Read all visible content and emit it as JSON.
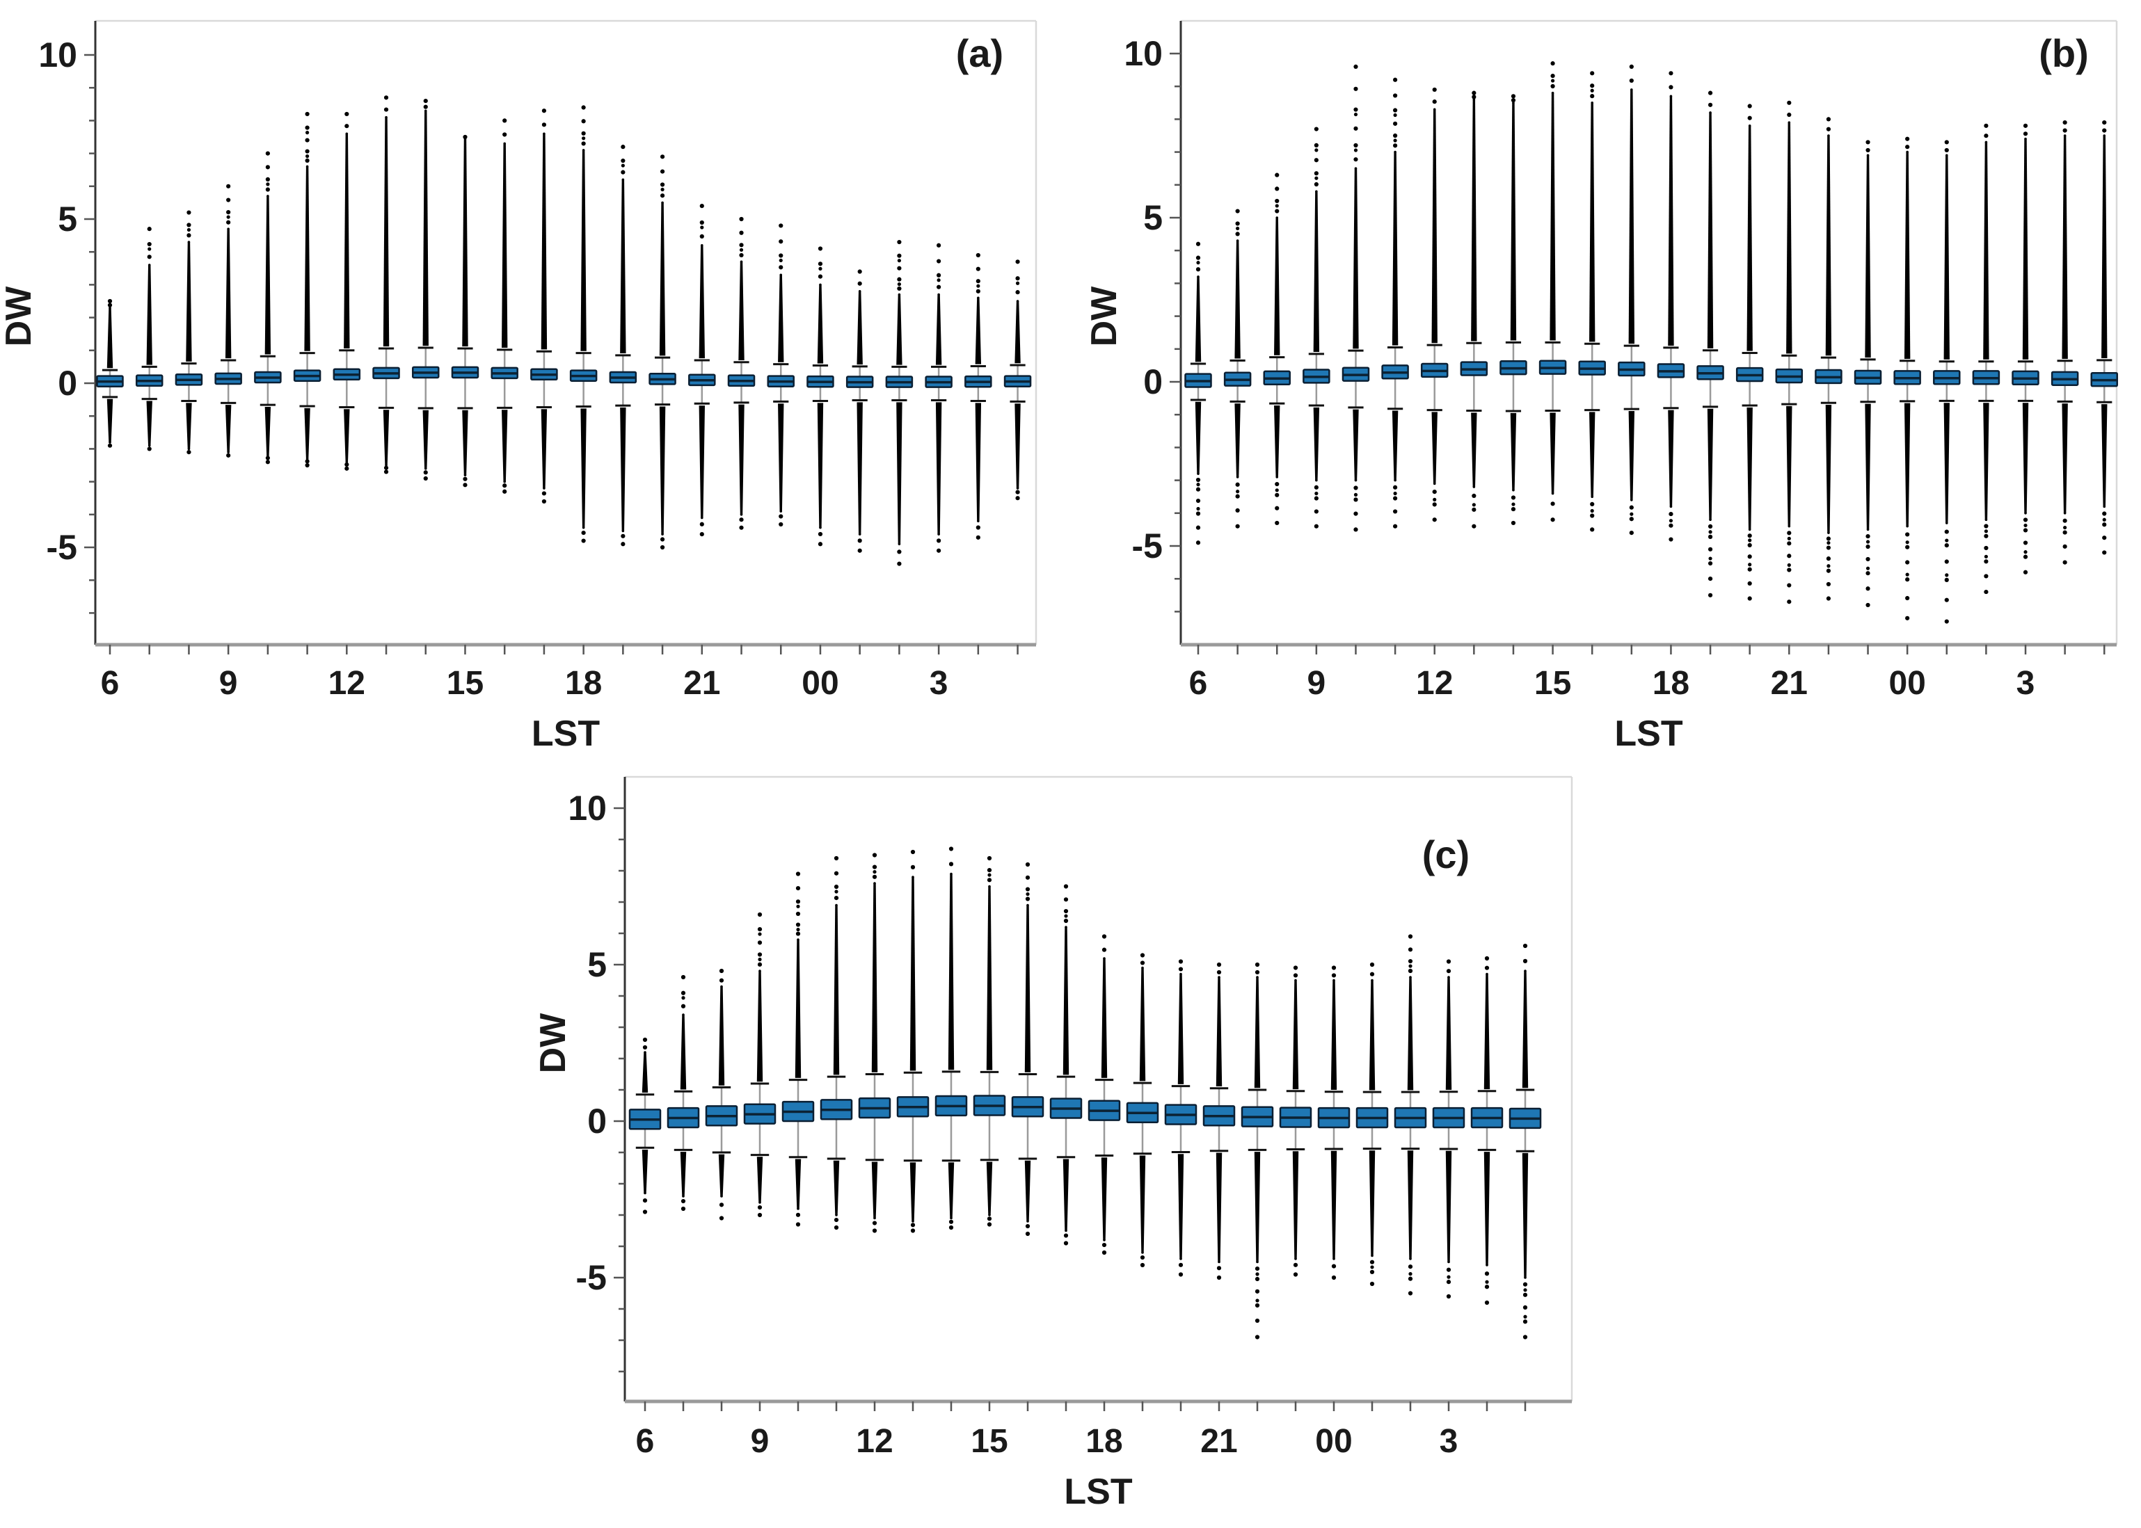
{
  "figure": {
    "background": "#ffffff"
  },
  "chart_data": {
    "type": "boxplot",
    "title": "",
    "xlabel": "LST",
    "ylabel": "DW",
    "grid": false,
    "hours": [
      "6",
      "7",
      "8",
      "9",
      "10",
      "11",
      "12",
      "13",
      "14",
      "15",
      "16",
      "17",
      "18",
      "19",
      "20",
      "21",
      "22",
      "23",
      "00",
      "01",
      "02",
      "03",
      "04",
      "05"
    ],
    "x_tick_label_indices": [
      0,
      3,
      6,
      9,
      12,
      15,
      18,
      21
    ],
    "x_tick_labels": [
      "6",
      "9",
      "12",
      "15",
      "18",
      "21",
      "00",
      "3"
    ],
    "y_tick_values": [
      10,
      5,
      0,
      -5
    ],
    "y_tick_labels": [
      "10",
      "5",
      "0",
      "-5"
    ],
    "colors": {
      "box_fill": "#1f77b4",
      "box_edge": "#0a1f33",
      "median_line": "#0c2233",
      "whisker_line": "#9a9a9a",
      "whisker_cap": "#111111",
      "outlier": "#000000",
      "y_axis": "#333333",
      "x_axis": "#9a9a9a",
      "tick": "#555555",
      "frame": "#d9d9d9",
      "text": "#1a1a1a"
    },
    "panels": [
      {
        "label": "(a)",
        "ylim": [
          -7.9,
          11.0
        ],
        "median": [
          0.05,
          0.07,
          0.1,
          0.13,
          0.17,
          0.22,
          0.26,
          0.3,
          0.32,
          0.32,
          0.3,
          0.26,
          0.22,
          0.17,
          0.12,
          0.09,
          0.07,
          0.05,
          0.04,
          0.03,
          0.03,
          0.03,
          0.04,
          0.05
        ],
        "q1": [
          -0.1,
          -0.08,
          -0.05,
          -0.02,
          0.02,
          0.07,
          0.11,
          0.15,
          0.17,
          0.17,
          0.15,
          0.11,
          0.07,
          0.02,
          -0.03,
          -0.06,
          -0.08,
          -0.1,
          -0.11,
          -0.12,
          -0.12,
          -0.12,
          -0.11,
          -0.1
        ],
        "q3": [
          0.22,
          0.24,
          0.27,
          0.3,
          0.34,
          0.39,
          0.43,
          0.47,
          0.49,
          0.49,
          0.47,
          0.43,
          0.39,
          0.34,
          0.29,
          0.26,
          0.24,
          0.22,
          0.21,
          0.2,
          0.2,
          0.2,
          0.21,
          0.22
        ],
        "whisker_high": [
          0.4,
          0.5,
          0.6,
          0.7,
          0.82,
          0.92,
          1.0,
          1.06,
          1.08,
          1.06,
          1.02,
          0.97,
          0.92,
          0.85,
          0.78,
          0.7,
          0.64,
          0.58,
          0.54,
          0.51,
          0.5,
          0.5,
          0.52,
          0.55
        ],
        "whisker_low": [
          -0.42,
          -0.48,
          -0.54,
          -0.6,
          -0.66,
          -0.7,
          -0.73,
          -0.75,
          -0.76,
          -0.76,
          -0.75,
          -0.73,
          -0.71,
          -0.68,
          -0.65,
          -0.62,
          -0.59,
          -0.56,
          -0.54,
          -0.52,
          -0.52,
          -0.52,
          -0.54,
          -0.56
        ],
        "outlier_dense_high": [
          2.3,
          3.6,
          4.3,
          4.7,
          5.7,
          6.6,
          7.6,
          8.1,
          8.3,
          7.5,
          7.3,
          7.6,
          7.1,
          6.2,
          5.5,
          4.2,
          3.7,
          3.3,
          3.0,
          2.8,
          2.7,
          2.7,
          2.6,
          2.5
        ],
        "outlier_max": [
          2.5,
          4.7,
          5.2,
          6.0,
          7.0,
          8.2,
          8.2,
          8.7,
          8.6,
          7.5,
          8.0,
          8.3,
          8.4,
          7.2,
          6.9,
          5.4,
          5.0,
          4.8,
          4.1,
          3.4,
          4.3,
          4.2,
          3.9,
          3.7
        ],
        "outlier_dense_low": [
          -1.8,
          -1.9,
          -2.0,
          -2.1,
          -2.2,
          -2.3,
          -2.4,
          -2.5,
          -2.6,
          -2.8,
          -3.0,
          -3.2,
          -4.4,
          -4.5,
          -4.6,
          -4.1,
          -4.0,
          -3.9,
          -4.4,
          -4.6,
          -4.9,
          -4.6,
          -4.2,
          -3.2
        ],
        "outlier_min": [
          -1.9,
          -2.0,
          -2.1,
          -2.2,
          -2.4,
          -2.5,
          -2.6,
          -2.7,
          -2.9,
          -3.1,
          -3.3,
          -3.6,
          -4.8,
          -4.9,
          -5.0,
          -4.6,
          -4.4,
          -4.3,
          -4.9,
          -5.1,
          -5.5,
          -5.1,
          -4.7,
          -3.5
        ]
      },
      {
        "label": "(b)",
        "ylim": [
          -8.0,
          11.0
        ],
        "median": [
          0.02,
          0.06,
          0.1,
          0.15,
          0.21,
          0.28,
          0.33,
          0.38,
          0.41,
          0.42,
          0.4,
          0.37,
          0.32,
          0.26,
          0.2,
          0.16,
          0.14,
          0.12,
          0.11,
          0.11,
          0.11,
          0.1,
          0.08,
          0.05
        ],
        "q1": [
          -0.16,
          -0.12,
          -0.08,
          -0.03,
          0.03,
          0.1,
          0.15,
          0.2,
          0.23,
          0.24,
          0.22,
          0.19,
          0.14,
          0.08,
          0.02,
          -0.02,
          -0.04,
          -0.06,
          -0.07,
          -0.07,
          -0.07,
          -0.08,
          -0.1,
          -0.13
        ],
        "q3": [
          0.24,
          0.28,
          0.32,
          0.37,
          0.43,
          0.5,
          0.55,
          0.6,
          0.63,
          0.64,
          0.62,
          0.59,
          0.54,
          0.48,
          0.42,
          0.38,
          0.36,
          0.34,
          0.33,
          0.33,
          0.33,
          0.32,
          0.3,
          0.27
        ],
        "whisker_high": [
          0.55,
          0.65,
          0.75,
          0.85,
          0.95,
          1.05,
          1.12,
          1.18,
          1.2,
          1.2,
          1.16,
          1.1,
          1.04,
          0.96,
          0.88,
          0.8,
          0.74,
          0.68,
          0.64,
          0.62,
          0.62,
          0.62,
          0.64,
          0.66
        ],
        "whisker_low": [
          -0.55,
          -0.6,
          -0.66,
          -0.72,
          -0.78,
          -0.82,
          -0.86,
          -0.88,
          -0.89,
          -0.88,
          -0.86,
          -0.83,
          -0.8,
          -0.76,
          -0.72,
          -0.68,
          -0.64,
          -0.61,
          -0.59,
          -0.58,
          -0.58,
          -0.58,
          -0.6,
          -0.62
        ],
        "outlier_dense_high": [
          3.2,
          4.3,
          5.0,
          5.8,
          6.5,
          7.0,
          8.3,
          8.6,
          8.5,
          8.8,
          8.5,
          8.9,
          8.7,
          8.2,
          7.8,
          7.9,
          7.5,
          6.9,
          7.0,
          6.9,
          7.3,
          7.4,
          7.5,
          7.5
        ],
        "outlier_max": [
          4.2,
          5.2,
          6.3,
          7.7,
          9.6,
          9.2,
          8.9,
          8.8,
          8.7,
          9.7,
          9.4,
          9.6,
          9.4,
          8.8,
          8.4,
          8.5,
          8.0,
          7.3,
          7.4,
          7.3,
          7.8,
          7.8,
          7.9,
          7.9
        ],
        "outlier_dense_low": [
          -2.8,
          -2.9,
          -2.9,
          -3.0,
          -3.0,
          -3.0,
          -3.1,
          -3.2,
          -3.3,
          -3.4,
          -3.5,
          -3.6,
          -3.8,
          -4.2,
          -4.5,
          -4.4,
          -4.6,
          -4.5,
          -4.4,
          -4.3,
          -4.2,
          -4.0,
          -4.0,
          -3.8
        ],
        "outlier_min": [
          -4.9,
          -4.4,
          -4.3,
          -4.4,
          -4.5,
          -4.4,
          -4.2,
          -4.4,
          -4.3,
          -4.2,
          -4.5,
          -4.6,
          -4.8,
          -6.5,
          -6.6,
          -6.7,
          -6.6,
          -6.8,
          -7.2,
          -7.3,
          -6.4,
          -5.8,
          -5.5,
          -5.2
        ]
      },
      {
        "label": "(c)",
        "ylim": [
          -9.0,
          10.7
        ],
        "median": [
          0.05,
          0.1,
          0.16,
          0.22,
          0.3,
          0.36,
          0.41,
          0.45,
          0.48,
          0.49,
          0.45,
          0.4,
          0.33,
          0.26,
          0.2,
          0.16,
          0.13,
          0.11,
          0.1,
          0.1,
          0.1,
          0.1,
          0.1,
          0.08
        ],
        "q1": [
          -0.25,
          -0.2,
          -0.14,
          -0.08,
          0.0,
          0.06,
          0.11,
          0.15,
          0.18,
          0.19,
          0.15,
          0.1,
          0.03,
          -0.04,
          -0.1,
          -0.14,
          -0.17,
          -0.19,
          -0.2,
          -0.2,
          -0.2,
          -0.2,
          -0.2,
          -0.22
        ],
        "q3": [
          0.37,
          0.42,
          0.48,
          0.54,
          0.62,
          0.68,
          0.73,
          0.77,
          0.8,
          0.81,
          0.77,
          0.72,
          0.65,
          0.58,
          0.52,
          0.48,
          0.45,
          0.43,
          0.42,
          0.42,
          0.42,
          0.42,
          0.42,
          0.4
        ],
        "whisker_high": [
          0.85,
          0.95,
          1.08,
          1.2,
          1.32,
          1.42,
          1.5,
          1.55,
          1.58,
          1.57,
          1.5,
          1.42,
          1.32,
          1.22,
          1.12,
          1.05,
          1.0,
          0.96,
          0.94,
          0.93,
          0.93,
          0.94,
          0.96,
          1.0
        ],
        "whisker_low": [
          -0.85,
          -0.92,
          -1.0,
          -1.08,
          -1.15,
          -1.2,
          -1.24,
          -1.26,
          -1.26,
          -1.24,
          -1.2,
          -1.15,
          -1.1,
          -1.04,
          -0.99,
          -0.95,
          -0.92,
          -0.9,
          -0.89,
          -0.88,
          -0.88,
          -0.89,
          -0.92,
          -0.96
        ],
        "outlier_dense_high": [
          2.2,
          3.4,
          4.3,
          4.8,
          5.8,
          6.9,
          7.6,
          7.8,
          7.9,
          7.5,
          6.9,
          6.2,
          5.2,
          4.9,
          4.7,
          4.6,
          4.6,
          4.5,
          4.5,
          4.5,
          4.6,
          4.6,
          4.7,
          4.8
        ],
        "outlier_max": [
          2.6,
          4.6,
          4.8,
          6.6,
          7.9,
          8.4,
          8.5,
          8.6,
          8.7,
          8.4,
          8.2,
          7.5,
          5.9,
          5.3,
          5.1,
          5.0,
          5.0,
          4.9,
          4.9,
          5.0,
          5.9,
          5.1,
          5.2,
          5.6
        ],
        "outlier_dense_low": [
          -2.3,
          -2.4,
          -2.4,
          -2.6,
          -2.8,
          -3.0,
          -3.1,
          -3.2,
          -3.1,
          -3.0,
          -3.2,
          -3.5,
          -3.8,
          -4.2,
          -4.4,
          -4.5,
          -4.5,
          -4.4,
          -4.4,
          -4.3,
          -4.4,
          -4.5,
          -4.6,
          -5.0
        ],
        "outlier_min": [
          -2.9,
          -2.8,
          -3.1,
          -3.0,
          -3.3,
          -3.4,
          -3.5,
          -3.5,
          -3.4,
          -3.3,
          -3.6,
          -3.9,
          -4.2,
          -4.6,
          -4.9,
          -5.0,
          -6.9,
          -4.9,
          -5.0,
          -5.2,
          -5.5,
          -5.6,
          -5.8,
          -6.9
        ]
      }
    ]
  }
}
